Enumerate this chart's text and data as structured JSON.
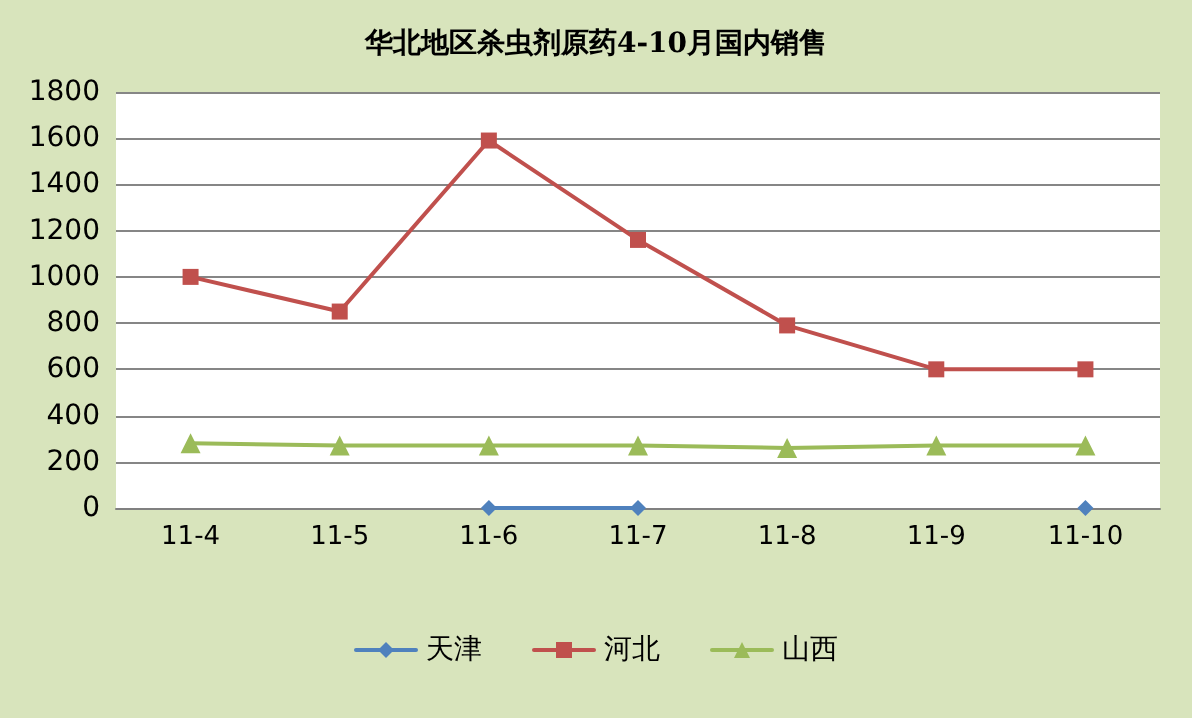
{
  "chart_data": {
    "type": "line",
    "title": "华北地区杀虫剂原药4-10月国内销售",
    "categories": [
      "11-4",
      "11-5",
      "11-6",
      "11-7",
      "11-8",
      "11-9",
      "11-10"
    ],
    "series": [
      {
        "name": "天津",
        "color": "#4f81bd",
        "marker": "diamond",
        "values": [
          null,
          null,
          0,
          0,
          null,
          null,
          0
        ]
      },
      {
        "name": "河北",
        "color": "#c0504d",
        "marker": "square",
        "values": [
          1000,
          850,
          1590,
          1160,
          790,
          600,
          600
        ]
      },
      {
        "name": "山西",
        "color": "#9bbb59",
        "marker": "triangle",
        "values": [
          280,
          270,
          270,
          270,
          260,
          270,
          270
        ]
      }
    ],
    "ylim": [
      0,
      1800
    ],
    "yticks": [
      0,
      200,
      400,
      600,
      800,
      1000,
      1200,
      1400,
      1600,
      1800
    ],
    "grid": "y",
    "legend": "bottom"
  }
}
